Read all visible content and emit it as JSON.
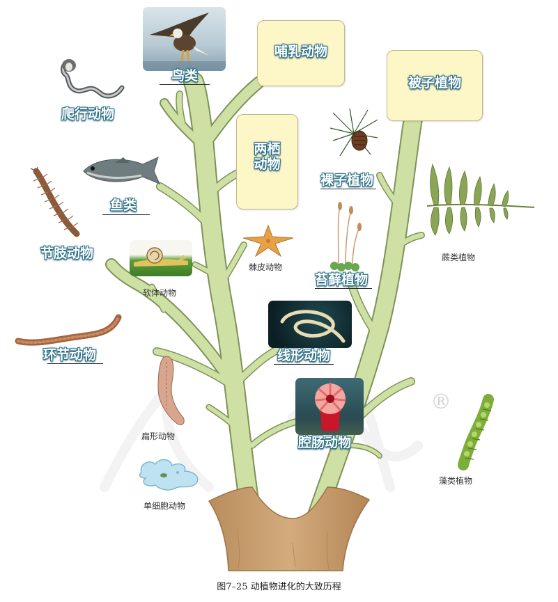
{
  "figure": {
    "caption": "图7–25 动植物进化的大致历程",
    "watermark_symbol": "®"
  },
  "animal_branch": {
    "highlighted_labels": {
      "mammals": "哺乳动物",
      "amphibians": "两栖动物",
      "birds": "鸟类",
      "reptiles": "爬行动物",
      "fish": "鱼类",
      "arthropods": "节肢动物",
      "annelids": "环节动物",
      "nematodes": "线形动物",
      "coelenterates": "腔肠动物"
    },
    "small_labels": {
      "echinoderms": "棘皮动物",
      "molluscs": "软体动物",
      "flatworms": "扁形动物",
      "protozoa": "单细胞动物"
    }
  },
  "plant_branch": {
    "highlighted_labels": {
      "angiosperms": "被子植物",
      "gymnosperms": "裸子植物",
      "bryophytes": "苔藓植物"
    },
    "small_labels": {
      "ferns": "蕨类植物",
      "algae": "藻类植物"
    }
  },
  "colors": {
    "branch_fill": "#cfe0a4",
    "branch_stroke": "#7d9258",
    "trunk_fill": "#c9a072",
    "box_fill": "#fdf6c7",
    "label_outline": "#2b6f86"
  }
}
